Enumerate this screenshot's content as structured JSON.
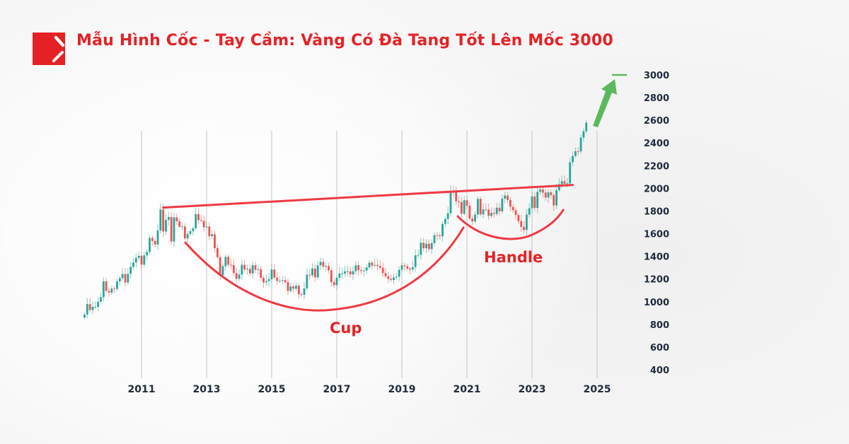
{
  "header": {
    "title": "Mẫu Hình Cốc - Tay Cầm: Vàng Có Đà Tang Tốt Lên Mốc 3000",
    "logo": "brand-logo-red-square"
  },
  "colors": {
    "accent": "#e42226",
    "up": "#26a69a",
    "down": "#ef5350",
    "arrow": "#5cb85c",
    "axis_text": "#1f2a3c"
  },
  "chart_data": {
    "type": "candlestick",
    "start": "2009-04",
    "interval": "month",
    "closes": [
      887,
      979,
      927,
      955,
      955,
      1000,
      1040,
      1180,
      1096,
      1081,
      1116,
      1113,
      1179,
      1208,
      1244,
      1169,
      1246,
      1307,
      1346,
      1386,
      1405,
      1327,
      1409,
      1439,
      1563,
      1536,
      1505,
      1628,
      1813,
      1620,
      1722,
      1747,
      1531,
      1744,
      1710,
      1662,
      1664,
      1558,
      1598,
      1622,
      1648,
      1772,
      1719,
      1714,
      1657,
      1664,
      1578,
      1595,
      1472,
      1393,
      1234,
      1314,
      1396,
      1326,
      1323,
      1253,
      1202,
      1240,
      1326,
      1284,
      1291,
      1250,
      1322,
      1282,
      1287,
      1211,
      1171,
      1182,
      1199,
      1284,
      1213,
      1183,
      1184,
      1190,
      1172,
      1095,
      1135,
      1115,
      1142,
      1065,
      1061,
      1118,
      1238,
      1233,
      1293,
      1215,
      1321,
      1351,
      1309,
      1316,
      1277,
      1173,
      1146,
      1211,
      1249,
      1249,
      1268,
      1268,
      1241,
      1269,
      1321,
      1280,
      1271,
      1275,
      1303,
      1345,
      1318,
      1325,
      1315,
      1299,
      1253,
      1224,
      1201,
      1192,
      1214,
      1221,
      1282,
      1321,
      1313,
      1292,
      1284,
      1305,
      1409,
      1413,
      1520,
      1472,
      1511,
      1464,
      1517,
      1587,
      1585,
      1577,
      1686,
      1730,
      1781,
      1975,
      1967,
      1886,
      1879,
      1776,
      1895,
      1847,
      1734,
      1708,
      1769,
      1907,
      1770,
      1814,
      1813,
      1757,
      1783,
      1774,
      1829,
      1797,
      1909,
      1937,
      1897,
      1837,
      1807,
      1765,
      1711,
      1660,
      1633,
      1768,
      1824,
      1928,
      1827,
      1969,
      1990,
      1962,
      1919,
      1965,
      1940,
      1849,
      1983,
      2036,
      2063,
      2039,
      2044,
      2230,
      2286,
      2327,
      2326,
      2447,
      2503,
      2580
    ],
    "x_ticks": [
      "2011",
      "2013",
      "2015",
      "2017",
      "2019",
      "2021",
      "2023",
      "2025"
    ],
    "y_ticks": [
      "3000",
      "2800",
      "2600",
      "2400",
      "2200",
      "2000",
      "1800",
      "1600",
      "1400",
      "1200",
      "1000",
      "800",
      "600",
      "400"
    ],
    "ylim": [
      400,
      3000
    ],
    "xlim": [
      "2009-04",
      "2025-06"
    ],
    "grid": "vertical lines at labelled years",
    "y_axis_position": "right",
    "annotations": {
      "cup_label": "Cup",
      "handle_label": "Handle",
      "resistance_line": {
        "from": [
          "2011-09",
          1830
        ],
        "to": [
          "2024-04",
          2030
        ]
      },
      "target": 3000
    }
  }
}
